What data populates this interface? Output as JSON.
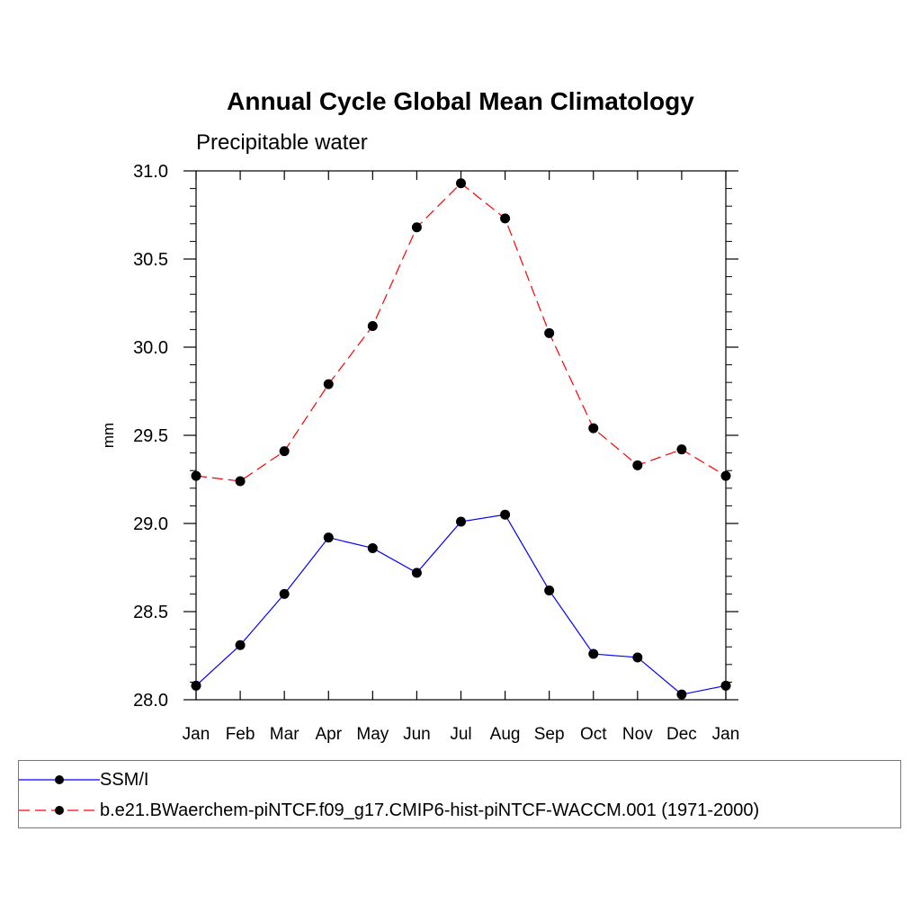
{
  "chart_data": {
    "type": "line",
    "title": "Annual Cycle Global Mean Climatology",
    "subtitle": "Precipitable water",
    "xlabel": "",
    "ylabel": "mm",
    "categories": [
      "Jan",
      "Feb",
      "Mar",
      "Apr",
      "May",
      "Jun",
      "Jul",
      "Aug",
      "Sep",
      "Oct",
      "Nov",
      "Dec",
      "Jan"
    ],
    "ylim": [
      28.0,
      31.0
    ],
    "yticks": [
      "28.0",
      "28.5",
      "29.0",
      "29.5",
      "30.0",
      "30.5",
      "31.0"
    ],
    "grid": false,
    "series": [
      {
        "name": "SSM/I",
        "color": "#0000ff",
        "dash": "solid",
        "values": [
          28.08,
          28.31,
          28.6,
          28.92,
          28.86,
          28.72,
          29.01,
          29.05,
          28.62,
          28.26,
          28.24,
          28.03,
          28.08
        ]
      },
      {
        "name": "b.e21.BWaerchem-piNTCF.f09_g17.CMIP6-hist-piNTCF-WACCM.001 (1971-2000)",
        "color": "#ff0000",
        "dash": "dashed",
        "values": [
          29.27,
          29.24,
          29.41,
          29.79,
          30.12,
          30.68,
          30.93,
          30.73,
          30.08,
          29.54,
          29.33,
          29.42,
          29.27
        ]
      }
    ],
    "legend_position": "bottom"
  }
}
